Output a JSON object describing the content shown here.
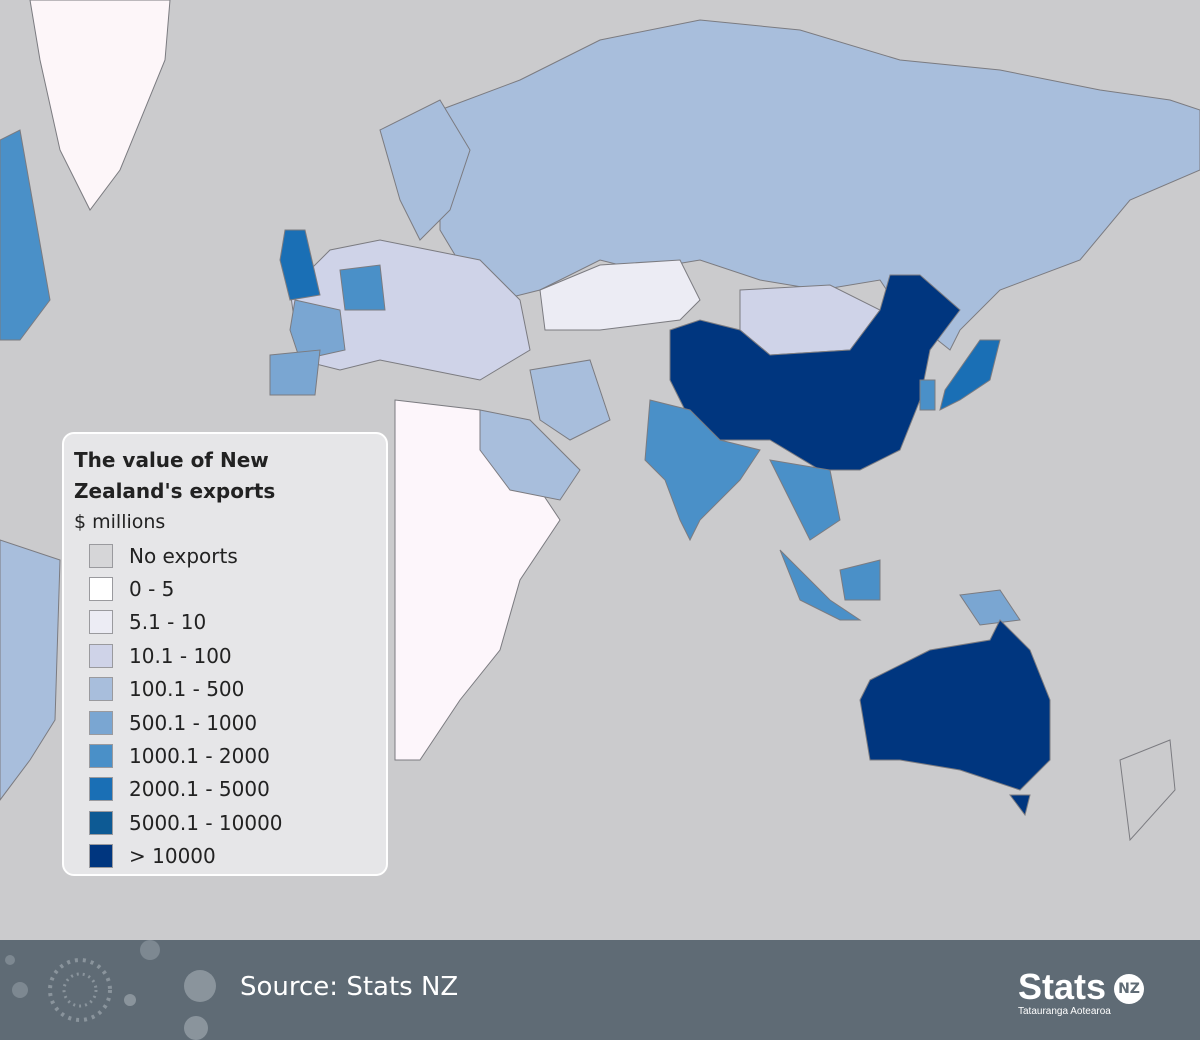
{
  "legend": {
    "title": "The value of New Zealand's exports",
    "subtitle": "$ millions",
    "items": [
      {
        "label": "No exports",
        "color": "#d6d6d8"
      },
      {
        "label": "0 - 5",
        "color": "#ffffff"
      },
      {
        "label": "5.1 - 10",
        "color": "#ececf4"
      },
      {
        "label": "10.1 - 100",
        "color": "#cfd3e8"
      },
      {
        "label": "100.1 - 500",
        "color": "#a8bedc"
      },
      {
        "label": "500.1 - 1000",
        "color": "#7aa6d2"
      },
      {
        "label": "1000.1 - 2000",
        "color": "#4a90c8"
      },
      {
        "label": "2000.1 - 5000",
        "color": "#1a6fb5"
      },
      {
        "label": "5000.1 - 10000",
        "color": "#0d5a94"
      },
      {
        "label": "> 10000",
        "color": "#00367f"
      }
    ]
  },
  "footer": {
    "source": "Source: Stats NZ",
    "logo": {
      "name": "Stats",
      "badge": "NZ",
      "tagline": "Tatauranga Aotearoa"
    }
  }
}
